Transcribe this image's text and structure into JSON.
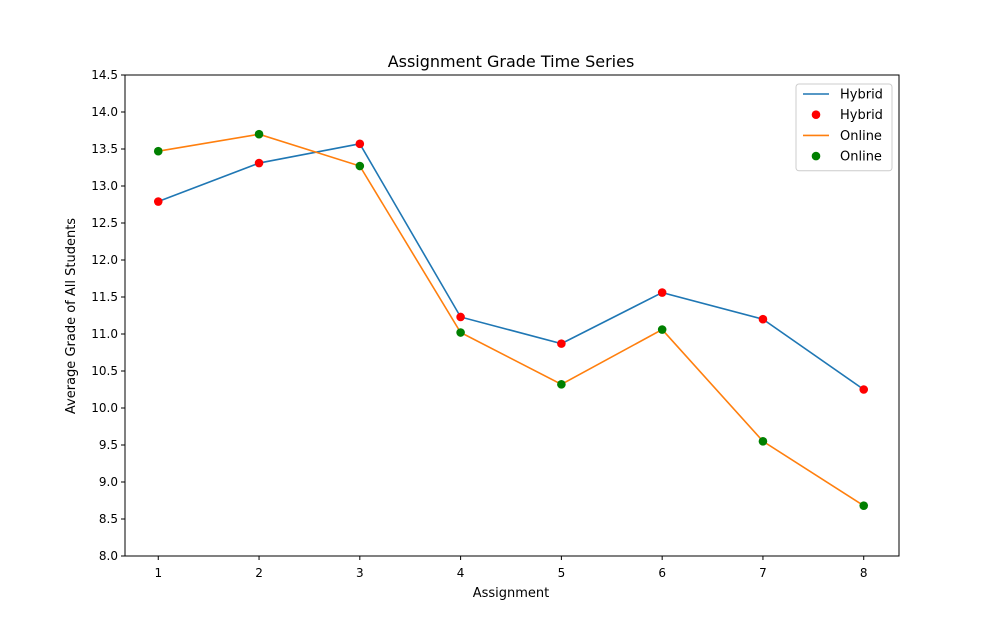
{
  "chart_data": {
    "type": "line",
    "title": "Assignment Grade Time Series",
    "xlabel": "Assignment",
    "ylabel": "Average Grade of All Students",
    "x": [
      1,
      2,
      3,
      4,
      5,
      6,
      7,
      8
    ],
    "xticks": [
      "1",
      "2",
      "3",
      "4",
      "5",
      "6",
      "7",
      "8"
    ],
    "xlim": [
      0.67,
      8.35
    ],
    "ylim": [
      8.0,
      14.5
    ],
    "yticks": [
      "8.0",
      "8.5",
      "9.0",
      "9.5",
      "10.0",
      "10.5",
      "11.0",
      "11.5",
      "12.0",
      "12.5",
      "13.0",
      "13.5",
      "14.0",
      "14.5"
    ],
    "series": [
      {
        "name": "Hybrid",
        "kind": "line",
        "color": "#1f77b4",
        "values": [
          12.79,
          13.31,
          13.57,
          11.23,
          10.87,
          11.56,
          11.2,
          10.25
        ]
      },
      {
        "name": "Hybrid",
        "kind": "scatter",
        "color": "#ff0000",
        "values": [
          12.79,
          13.31,
          13.57,
          11.23,
          10.87,
          11.56,
          11.2,
          10.25
        ]
      },
      {
        "name": "Online",
        "kind": "line",
        "color": "#ff7f0e",
        "values": [
          13.47,
          13.7,
          13.27,
          11.02,
          10.32,
          11.06,
          9.55,
          8.68
        ]
      },
      {
        "name": "Online",
        "kind": "scatter",
        "color": "#008000",
        "values": [
          13.47,
          13.7,
          13.27,
          11.02,
          10.32,
          11.06,
          9.55,
          8.68
        ]
      }
    ],
    "legend": "top-right",
    "grid": false
  }
}
